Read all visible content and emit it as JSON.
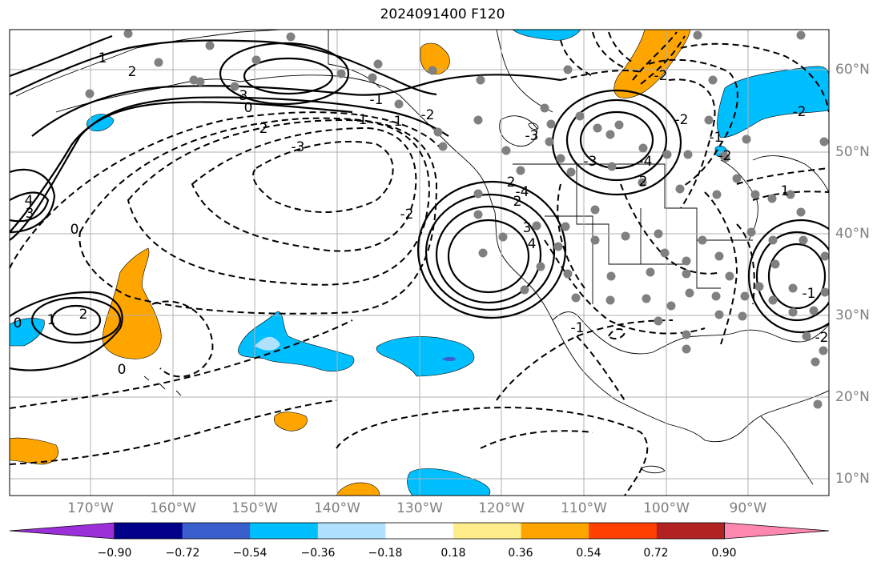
{
  "title": "2024091400 F120",
  "lon_labels": [
    "170°W",
    "160°W",
    "150°W",
    "140°W",
    "130°W",
    "120°W",
    "110°W",
    "100°W",
    "90°W"
  ],
  "lat_labels": [
    "60°N",
    "50°N",
    "40°N",
    "30°N",
    "20°N",
    "10°N"
  ],
  "colorbar": {
    "ticks": [
      "−0.90",
      "−0.72",
      "−0.54",
      "−0.36",
      "−0.18",
      "0.18",
      "0.36",
      "0.54",
      "0.72",
      "0.90"
    ],
    "colors": [
      "#9b30d9",
      "#00008b",
      "#3a5fcd",
      "#00bfff",
      "#b0e2ff",
      "#ffffff",
      "#ffec8b",
      "#ffa500",
      "#ff4000",
      "#b22222",
      "#ff88b0"
    ]
  },
  "contour_labels": [
    "1",
    "2",
    "3",
    "0",
    "-1",
    "-2",
    "-3",
    "-2",
    "-1",
    "0",
    "-1",
    "-2",
    "-3",
    "-4",
    "3",
    "2",
    "4",
    "-2",
    "-3",
    "-4",
    "-2",
    "2",
    "1",
    "0",
    "0",
    "-1",
    "-2",
    "-1",
    "-2",
    "-2",
    "4",
    "3",
    "2",
    "1",
    "-1",
    "-2"
  ],
  "colors": {
    "contour": "#000000",
    "grid": "#b0b0b0",
    "station": "#808080",
    "cyan_fill": "#00bfff",
    "light_blue_fill": "#b0e2ff",
    "orange_fill": "#ffa500",
    "purple_fill": "#3a5fcd"
  }
}
